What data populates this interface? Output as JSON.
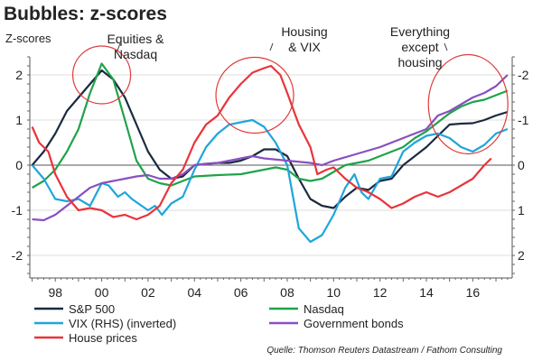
{
  "chart_data": {
    "type": "line",
    "title": "Bubbles: z-scores",
    "ylabel": "Z-scores",
    "ylim": [
      -2.5,
      2.4
    ],
    "xlim": [
      1996.9,
      2017.7
    ],
    "x_tick_labels": [
      "98",
      "00",
      "02",
      "04",
      "06",
      "08",
      "10",
      "12",
      "14",
      "16"
    ],
    "x_tick_years": [
      1998,
      2000,
      2002,
      2004,
      2006,
      2008,
      2010,
      2012,
      2014,
      2016
    ],
    "y_ticks_left": [
      "-2",
      "-1",
      "0",
      "1",
      "2"
    ],
    "y_ticks_right": [
      "2",
      "1",
      "0",
      "-1",
      "-2"
    ],
    "right_axis_inverted": true,
    "grid": true,
    "legend_placement": "bottom",
    "series": [
      {
        "name": "S&P 500",
        "color": "#1b2a41",
        "axis": "left",
        "x": [
          1997,
          1997.5,
          1998,
          1998.5,
          1999,
          1999.5,
          2000,
          2000.5,
          2001,
          2001.5,
          2002,
          2002.5,
          2003,
          2003.5,
          2004,
          2004.5,
          2005,
          2005.5,
          2006,
          2006.5,
          2007,
          2007.5,
          2008,
          2008.5,
          2009,
          2009.5,
          2010,
          2010.5,
          2011,
          2011.5,
          2012,
          2012.5,
          2013,
          2013.5,
          2014,
          2014.5,
          2015,
          2015.5,
          2016,
          2016.5,
          2017,
          2017.5
        ],
        "y": [
          0,
          0.3,
          0.7,
          1.2,
          1.5,
          1.8,
          2.1,
          1.9,
          1.5,
          0.9,
          0.3,
          -0.1,
          -0.3,
          -0.25,
          0,
          0.03,
          0.05,
          0.05,
          0.1,
          0.2,
          0.35,
          0.35,
          0.2,
          -0.3,
          -0.75,
          -0.9,
          -0.95,
          -0.7,
          -0.5,
          -0.55,
          -0.35,
          -0.3,
          0,
          0.2,
          0.4,
          0.65,
          0.9,
          0.92,
          0.93,
          1.0,
          1.1,
          1.18
        ]
      },
      {
        "name": "Nasdaq",
        "color": "#1fa34a",
        "axis": "left",
        "x": [
          1997,
          1997.5,
          1998,
          1998.5,
          1999,
          1999.5,
          2000,
          2000.5,
          2001,
          2001.5,
          2002,
          2002.5,
          2003,
          2003.5,
          2004,
          2005,
          2006,
          2007,
          2007.5,
          2008,
          2008.5,
          2009,
          2009.5,
          2010,
          2010.5,
          2011,
          2011.5,
          2012,
          2012.5,
          2013,
          2013.5,
          2014,
          2014.5,
          2015,
          2015.5,
          2016,
          2016.5,
          2017,
          2017.5
        ],
        "y": [
          -0.5,
          -0.35,
          -0.1,
          0.3,
          0.8,
          1.6,
          2.25,
          1.9,
          1.0,
          0.1,
          -0.3,
          -0.4,
          -0.45,
          -0.35,
          -0.25,
          -0.22,
          -0.2,
          -0.1,
          -0.05,
          -0.1,
          -0.3,
          -0.35,
          -0.3,
          -0.15,
          0,
          0.05,
          0.1,
          0.2,
          0.3,
          0.4,
          0.6,
          0.75,
          0.95,
          1.15,
          1.3,
          1.4,
          1.45,
          1.55,
          1.65
        ]
      },
      {
        "name": "VIX (RHS) (inverted)",
        "color": "#1ea5dc",
        "axis": "right",
        "x": [
          1997,
          1997.5,
          1998,
          1998.5,
          1999,
          1999.5,
          2000,
          2000.3,
          2000.7,
          2001,
          2001.3,
          2002,
          2002.3,
          2002.6,
          2003,
          2003.5,
          2004,
          2004.5,
          2005,
          2005.5,
          2006,
          2006.5,
          2007,
          2007.5,
          2008,
          2008.5,
          2009,
          2009.5,
          2010,
          2010.5,
          2010.9,
          2011.2,
          2011.5,
          2012,
          2012.5,
          2013,
          2013.5,
          2014,
          2014.5,
          2015,
          2015.5,
          2016,
          2016.5,
          2017,
          2017.5
        ],
        "y": [
          0,
          0.3,
          0.75,
          0.8,
          0.75,
          0.9,
          0.4,
          0.45,
          0.7,
          0.6,
          0.75,
          1.0,
          0.9,
          1.1,
          0.85,
          0.7,
          0.1,
          -0.4,
          -0.7,
          -0.9,
          -0.95,
          -1.0,
          -0.85,
          -0.5,
          0,
          1.4,
          1.7,
          1.55,
          1.1,
          0.5,
          0.2,
          0.6,
          0.75,
          0.3,
          0.25,
          -0.3,
          -0.5,
          -0.65,
          -0.7,
          -0.6,
          -0.4,
          -0.3,
          -0.45,
          -0.7,
          -0.8
        ]
      },
      {
        "name": "Government bonds",
        "color": "#8a4fc0",
        "axis": "left",
        "x": [
          1997,
          1997.5,
          1998,
          1998.5,
          1999,
          1999.5,
          2000,
          2000.5,
          2001,
          2001.5,
          2002,
          2002.5,
          2003,
          2003.5,
          2004,
          2005,
          2006,
          2006.5,
          2007,
          2008,
          2009,
          2009.5,
          2010,
          2011,
          2012,
          2013,
          2014,
          2014.5,
          2015,
          2015.5,
          2016,
          2016.5,
          2017,
          2017.5
        ],
        "y": [
          -1.2,
          -1.22,
          -1.1,
          -0.9,
          -0.7,
          -0.5,
          -0.4,
          -0.35,
          -0.3,
          -0.25,
          -0.22,
          -0.3,
          -0.3,
          -0.2,
          0,
          0.05,
          0.15,
          0.2,
          0.15,
          0.1,
          0.05,
          0,
          0.1,
          0.25,
          0.4,
          0.6,
          0.8,
          1.1,
          1.2,
          1.35,
          1.5,
          1.6,
          1.75,
          2.0
        ]
      },
      {
        "name": "House prices",
        "color": "#e8343a",
        "axis": "left",
        "x": [
          1997,
          1997.3,
          1997.7,
          1998,
          1998.5,
          1999,
          1999.5,
          2000,
          2000.5,
          2001,
          2001.5,
          2002,
          2002.5,
          2003,
          2003.5,
          2004,
          2004.5,
          2005,
          2005.5,
          2006,
          2006.5,
          2007,
          2007.3,
          2007.7,
          2008,
          2008.5,
          2009,
          2009.3,
          2009.7,
          2010,
          2010.5,
          2011,
          2011.5,
          2012,
          2012.5,
          2013,
          2013.5,
          2014,
          2014.5,
          2015,
          2015.5,
          2016,
          2016.5,
          2016.8
        ],
        "y": [
          0.85,
          0.5,
          0.3,
          -0.2,
          -0.7,
          -1.0,
          -0.95,
          -1.0,
          -1.15,
          -1.1,
          -1.2,
          -1.1,
          -0.9,
          -0.4,
          -0.1,
          0.5,
          0.9,
          1.1,
          1.5,
          1.8,
          2.05,
          2.15,
          2.2,
          2.0,
          1.6,
          0.9,
          0.4,
          -0.2,
          -0.1,
          -0.05,
          -0.3,
          -0.5,
          -0.6,
          -0.75,
          -0.95,
          -0.85,
          -0.7,
          -0.6,
          -0.7,
          -0.6,
          -0.45,
          -0.3,
          0,
          0.15
        ]
      }
    ],
    "annotations": [
      {
        "text_lines": [
          "Equities &",
          "Nasdaq"
        ],
        "circle_year": 2000,
        "circle_value": 2.0
      },
      {
        "text_lines": [
          "Housing",
          "& VIX"
        ],
        "circle_year": 2006.6,
        "circle_value": 1.55
      },
      {
        "text_lines": [
          "Everything",
          "except",
          "housing"
        ],
        "circle_year": 2015.8,
        "circle_value": 1.35
      }
    ],
    "source": "Quelle: Thomson Reuters Datastream / Fathom Consulting"
  }
}
